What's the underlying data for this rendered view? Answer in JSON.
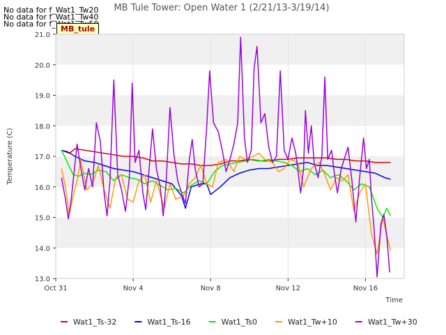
{
  "no_data_messages": [
    "No data for f_Wat1_Tw20",
    "No data for f_Wat1_Tw40",
    "No data for f_Wat1_Tw50"
  ],
  "badge_label": "MB_tule",
  "chart_data": {
    "type": "line",
    "title": "MB Tule Tower: Open Water 1 (2/21/13-3/19/14)",
    "xlabel": "Time",
    "ylabel": "Temperature (C)",
    "x_range_days": [
      0,
      18
    ],
    "x_ticks": [
      {
        "day": 0,
        "label": "Oct 31"
      },
      {
        "day": 4,
        "label": "Nov 4"
      },
      {
        "day": 8,
        "label": "Nov 8"
      },
      {
        "day": 12,
        "label": "Nov 12"
      },
      {
        "day": 16,
        "label": "Nov 16"
      }
    ],
    "ylim": [
      13.0,
      21.0
    ],
    "y_ticks": [
      "13.0",
      "14.0",
      "15.0",
      "16.0",
      "17.0",
      "18.0",
      "19.0",
      "20.0",
      "21.0"
    ],
    "grid": true,
    "legend_position": "bottom",
    "series": [
      {
        "name": "Wat1_Ts-32",
        "color": "#dd0000",
        "points": [
          [
            0.3,
            17.2
          ],
          [
            0.7,
            17.1
          ],
          [
            1.0,
            17.25
          ],
          [
            1.5,
            17.2
          ],
          [
            2.0,
            17.15
          ],
          [
            2.5,
            17.1
          ],
          [
            3.0,
            17.05
          ],
          [
            3.5,
            17.0
          ],
          [
            4.0,
            17.0
          ],
          [
            4.5,
            16.95
          ],
          [
            5.0,
            16.85
          ],
          [
            5.5,
            16.85
          ],
          [
            6.0,
            16.8
          ],
          [
            6.5,
            16.75
          ],
          [
            7.0,
            16.75
          ],
          [
            7.5,
            16.7
          ],
          [
            8.0,
            16.7
          ],
          [
            8.5,
            16.75
          ],
          [
            9.0,
            16.85
          ],
          [
            9.5,
            16.85
          ],
          [
            10.0,
            16.9
          ],
          [
            10.5,
            16.85
          ],
          [
            11.0,
            16.85
          ],
          [
            11.5,
            16.9
          ],
          [
            12.0,
            16.9
          ],
          [
            12.5,
            16.95
          ],
          [
            13.0,
            16.95
          ],
          [
            13.5,
            16.95
          ],
          [
            14.0,
            16.95
          ],
          [
            14.5,
            16.9
          ],
          [
            15.0,
            16.9
          ],
          [
            15.5,
            16.85
          ],
          [
            16.0,
            16.85
          ],
          [
            16.5,
            16.8
          ],
          [
            17.0,
            16.8
          ],
          [
            17.3,
            16.8
          ]
        ]
      },
      {
        "name": "Wat1_Ts-16",
        "color": "#0000dd",
        "points": [
          [
            0.3,
            17.2
          ],
          [
            0.6,
            17.15
          ],
          [
            1.0,
            17.0
          ],
          [
            1.5,
            16.85
          ],
          [
            2.0,
            16.8
          ],
          [
            2.5,
            16.7
          ],
          [
            3.0,
            16.6
          ],
          [
            3.5,
            16.55
          ],
          [
            4.0,
            16.5
          ],
          [
            4.5,
            16.4
          ],
          [
            5.0,
            16.3
          ],
          [
            5.5,
            16.2
          ],
          [
            6.0,
            16.1
          ],
          [
            6.5,
            15.7
          ],
          [
            6.7,
            15.3
          ],
          [
            7.0,
            16.0
          ],
          [
            7.5,
            16.1
          ],
          [
            7.8,
            16.1
          ],
          [
            8.0,
            15.75
          ],
          [
            8.5,
            16.0
          ],
          [
            9.0,
            16.3
          ],
          [
            9.5,
            16.45
          ],
          [
            10.0,
            16.55
          ],
          [
            10.5,
            16.6
          ],
          [
            11.0,
            16.6
          ],
          [
            11.5,
            16.65
          ],
          [
            12.0,
            16.7
          ],
          [
            12.5,
            16.75
          ],
          [
            13.0,
            16.8
          ],
          [
            13.5,
            16.7
          ],
          [
            14.0,
            16.7
          ],
          [
            14.5,
            16.65
          ],
          [
            15.0,
            16.6
          ],
          [
            15.5,
            16.55
          ],
          [
            16.0,
            16.5
          ],
          [
            16.5,
            16.45
          ],
          [
            17.0,
            16.3
          ],
          [
            17.3,
            16.25
          ]
        ]
      },
      {
        "name": "Wat1_Ts0",
        "color": "#00ee00",
        "points": [
          [
            0.3,
            17.2
          ],
          [
            0.6,
            16.8
          ],
          [
            0.9,
            16.4
          ],
          [
            1.2,
            16.35
          ],
          [
            1.5,
            16.45
          ],
          [
            1.8,
            16.4
          ],
          [
            2.2,
            16.55
          ],
          [
            2.6,
            16.5
          ],
          [
            3.0,
            16.2
          ],
          [
            3.4,
            16.4
          ],
          [
            3.8,
            16.3
          ],
          [
            4.2,
            16.25
          ],
          [
            4.6,
            16.1
          ],
          [
            5.0,
            16.2
          ],
          [
            5.4,
            16.05
          ],
          [
            5.8,
            15.9
          ],
          [
            6.2,
            15.95
          ],
          [
            6.6,
            15.8
          ],
          [
            7.0,
            16.05
          ],
          [
            7.4,
            16.2
          ],
          [
            7.8,
            16.1
          ],
          [
            8.2,
            16.5
          ],
          [
            8.6,
            16.7
          ],
          [
            9.0,
            16.75
          ],
          [
            9.4,
            16.8
          ],
          [
            9.8,
            16.85
          ],
          [
            10.2,
            16.9
          ],
          [
            10.6,
            16.85
          ],
          [
            11.0,
            16.9
          ],
          [
            11.4,
            16.85
          ],
          [
            11.8,
            16.8
          ],
          [
            12.2,
            16.7
          ],
          [
            12.6,
            16.5
          ],
          [
            13.0,
            16.6
          ],
          [
            13.4,
            16.4
          ],
          [
            13.8,
            16.55
          ],
          [
            14.2,
            16.3
          ],
          [
            14.6,
            16.4
          ],
          [
            15.0,
            16.2
          ],
          [
            15.4,
            15.9
          ],
          [
            15.8,
            16.1
          ],
          [
            16.2,
            16.0
          ],
          [
            16.6,
            15.3
          ],
          [
            16.9,
            15.0
          ],
          [
            17.1,
            15.3
          ],
          [
            17.3,
            15.05
          ]
        ]
      },
      {
        "name": "Wat1_Tw+10",
        "color": "#ff9900",
        "points": [
          [
            0.3,
            16.6
          ],
          [
            0.5,
            16.0
          ],
          [
            0.7,
            15.1
          ],
          [
            0.9,
            15.7
          ],
          [
            1.1,
            16.2
          ],
          [
            1.3,
            16.9
          ],
          [
            1.6,
            15.9
          ],
          [
            1.9,
            16.1
          ],
          [
            2.2,
            16.7
          ],
          [
            2.5,
            15.9
          ],
          [
            2.8,
            15.3
          ],
          [
            3.1,
            16.3
          ],
          [
            3.4,
            16.4
          ],
          [
            3.7,
            15.6
          ],
          [
            4.0,
            15.5
          ],
          [
            4.3,
            16.2
          ],
          [
            4.6,
            16.4
          ],
          [
            4.9,
            15.5
          ],
          [
            5.2,
            16.2
          ],
          [
            5.6,
            15.3
          ],
          [
            5.9,
            16.1
          ],
          [
            6.2,
            15.6
          ],
          [
            6.6,
            15.7
          ],
          [
            6.9,
            16.1
          ],
          [
            7.2,
            16.3
          ],
          [
            7.5,
            16.7
          ],
          [
            7.8,
            16.1
          ],
          [
            8.1,
            16.0
          ],
          [
            8.4,
            16.8
          ],
          [
            8.8,
            16.9
          ],
          [
            9.2,
            16.5
          ],
          [
            9.5,
            17.0
          ],
          [
            9.8,
            16.9
          ],
          [
            10.2,
            17.0
          ],
          [
            10.5,
            17.1
          ],
          [
            10.8,
            16.9
          ],
          [
            11.2,
            16.8
          ],
          [
            11.5,
            16.5
          ],
          [
            11.8,
            16.6
          ],
          [
            12.1,
            16.9
          ],
          [
            12.5,
            16.8
          ],
          [
            12.8,
            16.0
          ],
          [
            13.2,
            16.6
          ],
          [
            13.6,
            16.8
          ],
          [
            13.9,
            16.4
          ],
          [
            14.2,
            15.9
          ],
          [
            14.5,
            16.3
          ],
          [
            14.8,
            16.2
          ],
          [
            15.1,
            16.4
          ],
          [
            15.4,
            15.2
          ],
          [
            15.7,
            15.8
          ],
          [
            16.0,
            16.1
          ],
          [
            16.3,
            14.5
          ],
          [
            16.6,
            13.8
          ],
          [
            16.9,
            15.0
          ],
          [
            17.1,
            14.4
          ],
          [
            17.3,
            13.9
          ]
        ]
      },
      {
        "name": "Wat1_Tw+30",
        "color": "#9900dd",
        "points": [
          [
            0.3,
            16.3
          ],
          [
            0.5,
            15.6
          ],
          [
            0.65,
            14.95
          ],
          [
            0.8,
            15.6
          ],
          [
            1.0,
            16.8
          ],
          [
            1.1,
            17.4
          ],
          [
            1.3,
            16.6
          ],
          [
            1.5,
            15.9
          ],
          [
            1.7,
            16.6
          ],
          [
            1.9,
            16.0
          ],
          [
            2.1,
            18.1
          ],
          [
            2.3,
            17.5
          ],
          [
            2.5,
            15.8
          ],
          [
            2.65,
            15.05
          ],
          [
            2.8,
            16.2
          ],
          [
            3.0,
            19.5
          ],
          [
            3.2,
            16.4
          ],
          [
            3.4,
            15.9
          ],
          [
            3.6,
            15.2
          ],
          [
            3.8,
            16.3
          ],
          [
            3.95,
            19.4
          ],
          [
            4.1,
            16.8
          ],
          [
            4.3,
            17.2
          ],
          [
            4.5,
            15.8
          ],
          [
            4.65,
            15.25
          ],
          [
            4.8,
            16.4
          ],
          [
            5.0,
            17.9
          ],
          [
            5.2,
            16.6
          ],
          [
            5.4,
            16.0
          ],
          [
            5.55,
            15.05
          ],
          [
            5.7,
            16.1
          ],
          [
            5.9,
            18.6
          ],
          [
            6.1,
            17.1
          ],
          [
            6.3,
            16.2
          ],
          [
            6.5,
            15.8
          ],
          [
            6.7,
            15.45
          ],
          [
            6.9,
            16.9
          ],
          [
            7.05,
            17.55
          ],
          [
            7.2,
            16.6
          ],
          [
            7.4,
            16.0
          ],
          [
            7.6,
            16.1
          ],
          [
            7.8,
            18.0
          ],
          [
            7.95,
            19.8
          ],
          [
            8.15,
            18.1
          ],
          [
            8.4,
            17.8
          ],
          [
            8.6,
            17.2
          ],
          [
            8.8,
            16.5
          ],
          [
            9.0,
            16.9
          ],
          [
            9.2,
            17.4
          ],
          [
            9.4,
            18.1
          ],
          [
            9.55,
            20.9
          ],
          [
            9.75,
            17.6
          ],
          [
            9.9,
            16.8
          ],
          [
            10.1,
            17.2
          ],
          [
            10.25,
            19.9
          ],
          [
            10.4,
            20.6
          ],
          [
            10.6,
            18.1
          ],
          [
            10.8,
            18.4
          ],
          [
            11.0,
            17.3
          ],
          [
            11.2,
            16.8
          ],
          [
            11.4,
            17.0
          ],
          [
            11.6,
            19.8
          ],
          [
            11.8,
            17.2
          ],
          [
            12.0,
            16.9
          ],
          [
            12.2,
            17.6
          ],
          [
            12.4,
            17.1
          ],
          [
            12.5,
            16.6
          ],
          [
            12.65,
            15.8
          ],
          [
            12.8,
            16.6
          ],
          [
            12.9,
            18.5
          ],
          [
            13.05,
            17.1
          ],
          [
            13.2,
            18.0
          ],
          [
            13.35,
            16.8
          ],
          [
            13.55,
            16.3
          ],
          [
            13.75,
            17.0
          ],
          [
            13.9,
            19.6
          ],
          [
            14.05,
            16.9
          ],
          [
            14.25,
            17.2
          ],
          [
            14.4,
            16.4
          ],
          [
            14.55,
            15.8
          ],
          [
            14.75,
            16.6
          ],
          [
            14.9,
            16.9
          ],
          [
            15.1,
            17.3
          ],
          [
            15.3,
            16.2
          ],
          [
            15.5,
            14.85
          ],
          [
            15.7,
            16.3
          ],
          [
            15.9,
            17.6
          ],
          [
            16.05,
            16.6
          ],
          [
            16.2,
            16.9
          ],
          [
            16.3,
            15.7
          ],
          [
            16.45,
            14.6
          ],
          [
            16.6,
            13.05
          ],
          [
            16.8,
            14.8
          ],
          [
            16.95,
            15.1
          ],
          [
            17.1,
            14.4
          ],
          [
            17.25,
            13.2
          ]
        ]
      }
    ]
  }
}
